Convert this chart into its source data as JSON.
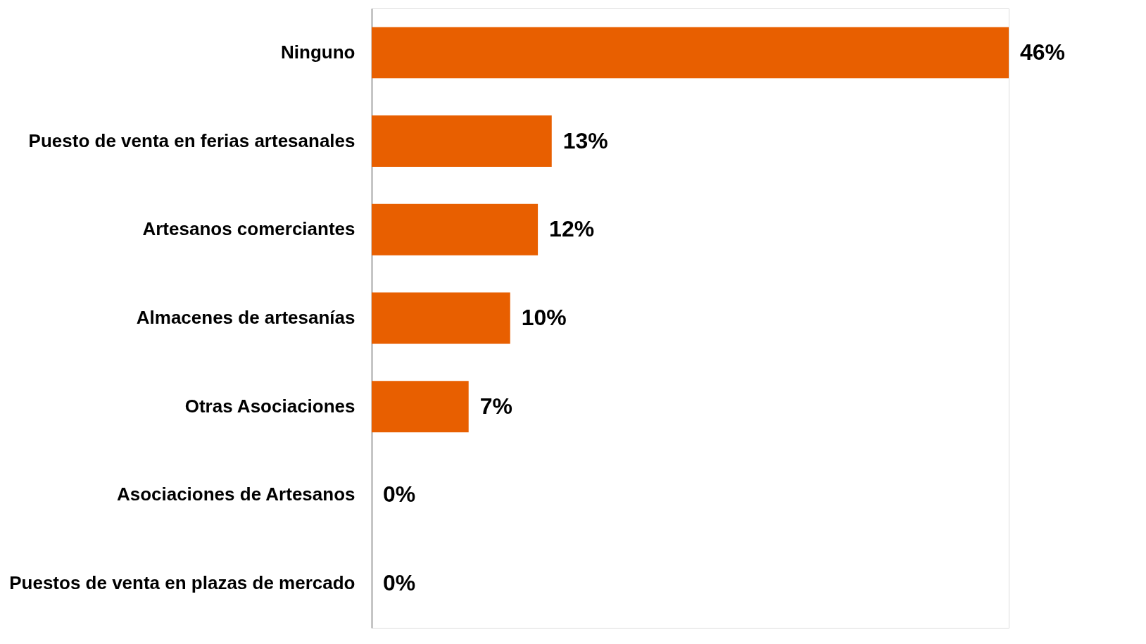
{
  "chart_data": {
    "type": "bar",
    "orientation": "horizontal",
    "categories": [
      "Ninguno",
      "Puesto de venta en ferias artesanales",
      "Artesanos comerciantes",
      "Almacenes de artesanías",
      "Otras Asociaciones",
      "Asociaciones de Artesanos",
      "Puestos de venta en plazas de mercado"
    ],
    "values": [
      46,
      13,
      12,
      10,
      7,
      0,
      0
    ],
    "value_labels": [
      "46%",
      "13%",
      "12%",
      "10%",
      "7%",
      "0%",
      "0%"
    ],
    "color": "#e85f00"
  }
}
